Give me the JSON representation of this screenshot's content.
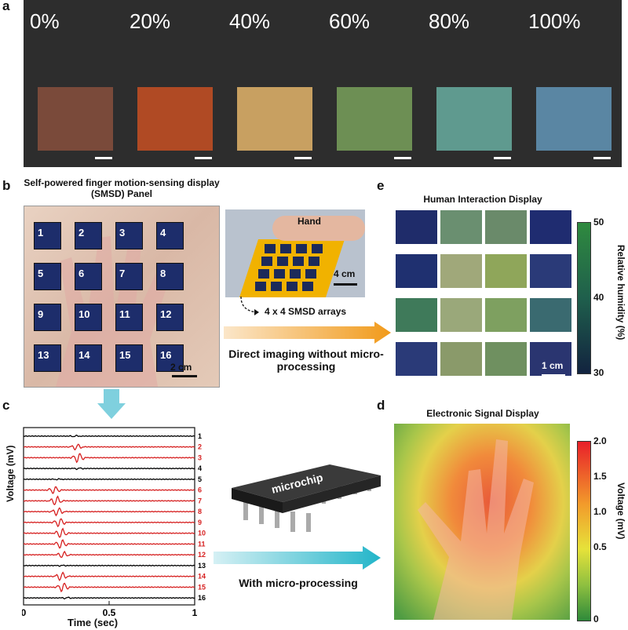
{
  "panel_labels": {
    "a": "a",
    "b": "b",
    "c": "c",
    "d": "d",
    "e": "e"
  },
  "panel_a": {
    "strain_labels": [
      "0%",
      "20%",
      "40%",
      "60%",
      "80%",
      "100%"
    ],
    "sample_colors": [
      "#7a4a3a",
      "#b04a24",
      "#c8a061",
      "#6d8f54",
      "#5f9a8f",
      "#5a86a3"
    ]
  },
  "panel_b": {
    "title": "Self-powered finger motion-sensing display (SMSD) Panel",
    "cell_numbers": [
      "1",
      "2",
      "3",
      "4",
      "5",
      "6",
      "7",
      "8",
      "9",
      "10",
      "11",
      "12",
      "13",
      "14",
      "15",
      "16"
    ],
    "scale": "2 cm",
    "inset_hand_label": "Hand",
    "inset_scale": "4 cm",
    "inset_array_label": "4 x 4 SMSD arrays"
  },
  "arrow_top_text": "Direct imaging without micro-processing",
  "arrow_bottom_text": "With micro-processing",
  "microchip_label": "microchip",
  "panel_e": {
    "title": "Human Interaction Display",
    "colorbar_label": "Relative humidity (%)",
    "colorbar_ticks": [
      "50",
      "40",
      "30"
    ],
    "scale": "1 cm"
  },
  "panel_d": {
    "title": "Electronic Signal Display",
    "colorbar_label": "Voltage (mV)",
    "colorbar_ticks": [
      "2.0",
      "1.5",
      "1.0",
      "0.5",
      "0"
    ]
  },
  "chart_data": {
    "type": "line",
    "title": "",
    "xlabel": "Time (sec)",
    "ylabel": "Voltage (mV)",
    "xlim": [
      0,
      1
    ],
    "xticks": [
      "0",
      "0.5",
      "1"
    ],
    "series": [
      {
        "name": "1",
        "color": "#000000",
        "peak_time": 0.3,
        "amplitude": 0.15
      },
      {
        "name": "2",
        "color": "#d62020",
        "peak_time": 0.31,
        "amplitude": 0.55
      },
      {
        "name": "3",
        "color": "#d62020",
        "peak_time": 0.32,
        "amplitude": 0.9
      },
      {
        "name": "4",
        "color": "#000000",
        "peak_time": 0.32,
        "amplitude": 0.15
      },
      {
        "name": "5",
        "color": "#000000",
        "peak_time": 0.2,
        "amplitude": 0.1
      },
      {
        "name": "6",
        "color": "#d62020",
        "peak_time": 0.18,
        "amplitude": 0.7
      },
      {
        "name": "7",
        "color": "#d62020",
        "peak_time": 0.19,
        "amplitude": 0.85
      },
      {
        "name": "8",
        "color": "#d62020",
        "peak_time": 0.2,
        "amplitude": 0.75
      },
      {
        "name": "9",
        "color": "#d62020",
        "peak_time": 0.21,
        "amplitude": 0.8
      },
      {
        "name": "10",
        "color": "#d62020",
        "peak_time": 0.22,
        "amplitude": 0.9
      },
      {
        "name": "11",
        "color": "#d62020",
        "peak_time": 0.22,
        "amplitude": 0.85
      },
      {
        "name": "12",
        "color": "#d62020",
        "peak_time": 0.23,
        "amplitude": 0.6
      },
      {
        "name": "13",
        "color": "#000000",
        "peak_time": 0.22,
        "amplitude": 0.1
      },
      {
        "name": "14",
        "color": "#d62020",
        "peak_time": 0.22,
        "amplitude": 0.8
      },
      {
        "name": "15",
        "color": "#d62020",
        "peak_time": 0.23,
        "amplitude": 0.85
      },
      {
        "name": "16",
        "color": "#000000",
        "peak_time": 0.25,
        "amplitude": 0.15
      }
    ]
  }
}
